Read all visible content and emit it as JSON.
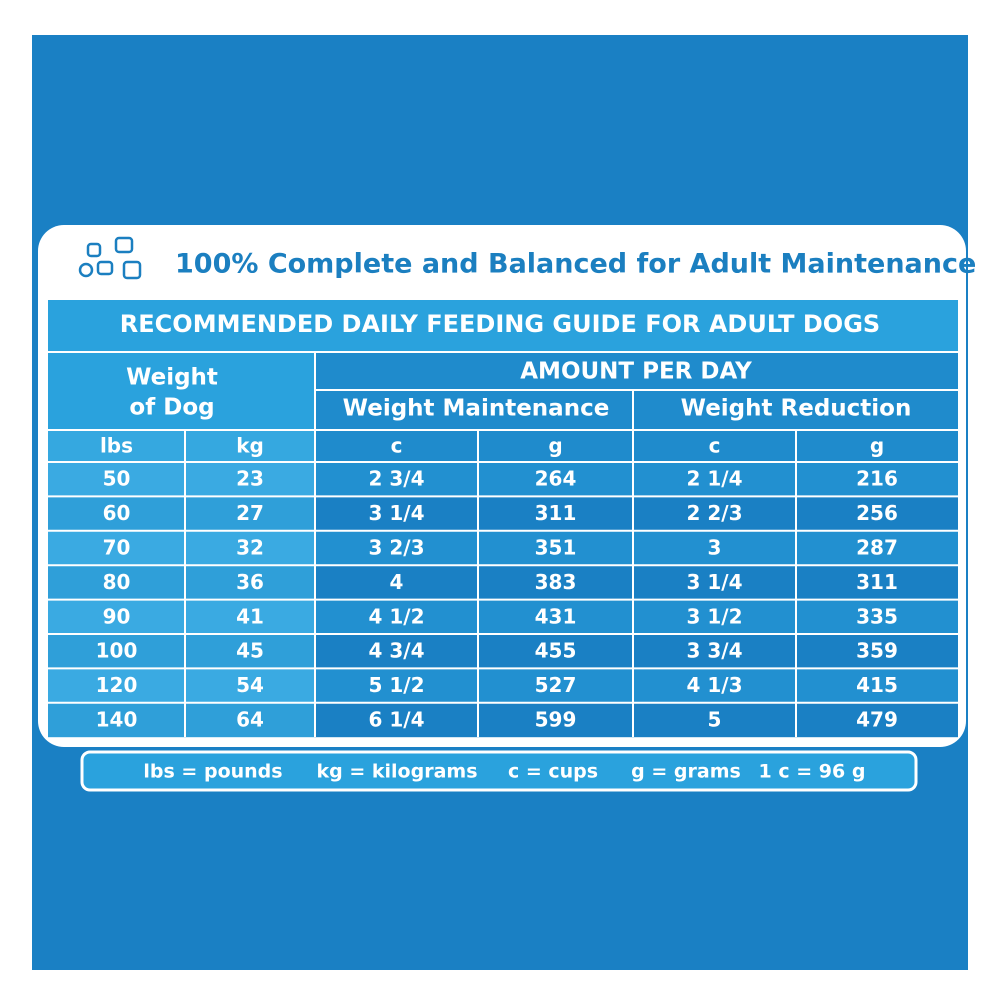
{
  "header": {
    "title": "100% Complete and Balanced for Adult Maintenance"
  },
  "table": {
    "title": "RECOMMENDED DAILY FEEDING GUIDE FOR ADULT DOGS",
    "weight_header": [
      "Weight",
      "of Dog"
    ],
    "amount_header": "AMOUNT PER DAY",
    "groups": [
      "Weight Maintenance",
      "Weight Reduction"
    ],
    "units": [
      "lbs",
      "kg",
      "c",
      "g",
      "c",
      "g"
    ],
    "rows": [
      [
        "50",
        "23",
        "2 3/4",
        "264",
        "2 1/4",
        "216"
      ],
      [
        "60",
        "27",
        "3 1/4",
        "311",
        "2 2/3",
        "256"
      ],
      [
        "70",
        "32",
        "3 2/3",
        "351",
        "3",
        "287"
      ],
      [
        "80",
        "36",
        "4",
        "383",
        "3 1/4",
        "311"
      ],
      [
        "90",
        "41",
        "4 1/2",
        "431",
        "3 1/2",
        "335"
      ],
      [
        "100",
        "45",
        "4 3/4",
        "455",
        "3 3/4",
        "359"
      ],
      [
        "120",
        "54",
        "5 1/2",
        "527",
        "4 1/3",
        "415"
      ],
      [
        "140",
        "64",
        "6 1/4",
        "599",
        "5",
        "479"
      ]
    ]
  },
  "footer": {
    "items": [
      "lbs = pounds",
      "kg = kilograms",
      "c = cups",
      "g = grams",
      "1 c = 96 g"
    ]
  }
}
